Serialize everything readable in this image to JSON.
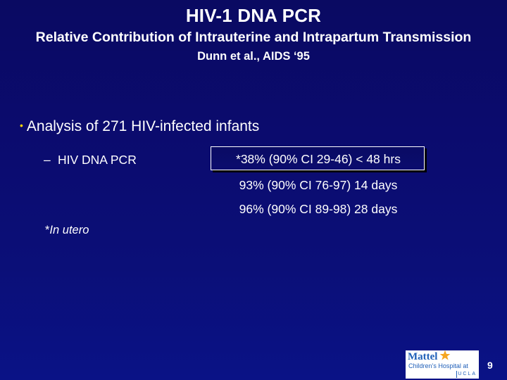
{
  "slide": {
    "title": "HIV-1 DNA PCR",
    "subtitle": "Relative Contribution of Intrauterine and Intrapartum Transmission",
    "citation": "Dunn et al., AIDS ‘95",
    "bullet_marker": "•",
    "bullet_text": "Analysis of 271 HIV-infected infants",
    "sub_marker": "–",
    "sub_label": "HIV DNA PCR",
    "results": [
      "*38% (90% CI 29-46) < 48 hrs",
      "93% (90% CI 76-97) 14 days",
      "96% (90% CI 89-98) 28 days"
    ],
    "footnote_marker": "*",
    "footnote_text": "In utero",
    "page_number": "9"
  },
  "logo": {
    "brand": "Mattel",
    "line2": "Children’s Hospital at",
    "ucla": "UCLA",
    "icon": "star-icon",
    "colors": {
      "text": "#1f5fb8",
      "star": "#f5a623"
    }
  },
  "colors": {
    "background": "#0b0b6e",
    "text": "#ffffff",
    "bullet": "#ffd700"
  }
}
